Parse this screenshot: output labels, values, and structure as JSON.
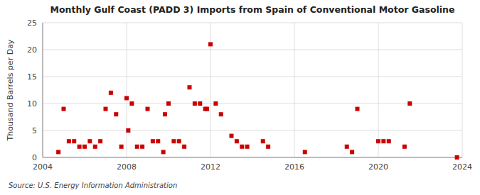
{
  "chart_data": {
    "type": "scatter",
    "title": "Monthly Gulf Coast (PADD 3) Imports from Spain of Conventional Motor Gasoline",
    "ylabel": "Thousand Barrels per Day",
    "source": "Source: U.S. Energy Information Administration",
    "x": [
      2004.75,
      2005.0,
      2005.25,
      2005.5,
      2005.75,
      2006.0,
      2006.25,
      2006.5,
      2006.75,
      2007.0,
      2007.25,
      2007.5,
      2007.75,
      2008.0,
      2008.08,
      2008.25,
      2008.5,
      2008.75,
      2009.0,
      2009.25,
      2009.5,
      2009.75,
      2009.83,
      2010.0,
      2010.25,
      2010.5,
      2010.75,
      2011.0,
      2011.25,
      2011.5,
      2011.75,
      2011.83,
      2012.0,
      2012.25,
      2012.5,
      2013.0,
      2013.25,
      2013.5,
      2013.75,
      2014.5,
      2014.75,
      2016.5,
      2018.5,
      2018.75,
      2019.0,
      2020.0,
      2020.25,
      2020.5,
      2021.25,
      2021.5,
      2023.75
    ],
    "values": [
      1,
      9,
      3,
      3,
      2,
      2,
      3,
      2,
      3,
      9,
      12,
      8,
      2,
      11,
      5,
      10,
      2,
      2,
      9,
      3,
      3,
      1,
      8,
      10,
      3,
      3,
      2,
      13,
      10,
      10,
      9,
      9,
      21,
      10,
      8,
      4,
      3,
      2,
      2,
      3,
      2,
      1,
      2,
      1,
      9,
      3,
      3,
      3,
      2,
      10,
      0
    ],
    "color": "#cc0000",
    "marker": "square",
    "xlim": [
      2004,
      2024
    ],
    "ylim": [
      0,
      25
    ],
    "xticks": [
      2004,
      2008,
      2012,
      2016,
      2020,
      2024
    ],
    "yticks": [
      0,
      5,
      10,
      15,
      20,
      25
    ],
    "grid": true
  }
}
